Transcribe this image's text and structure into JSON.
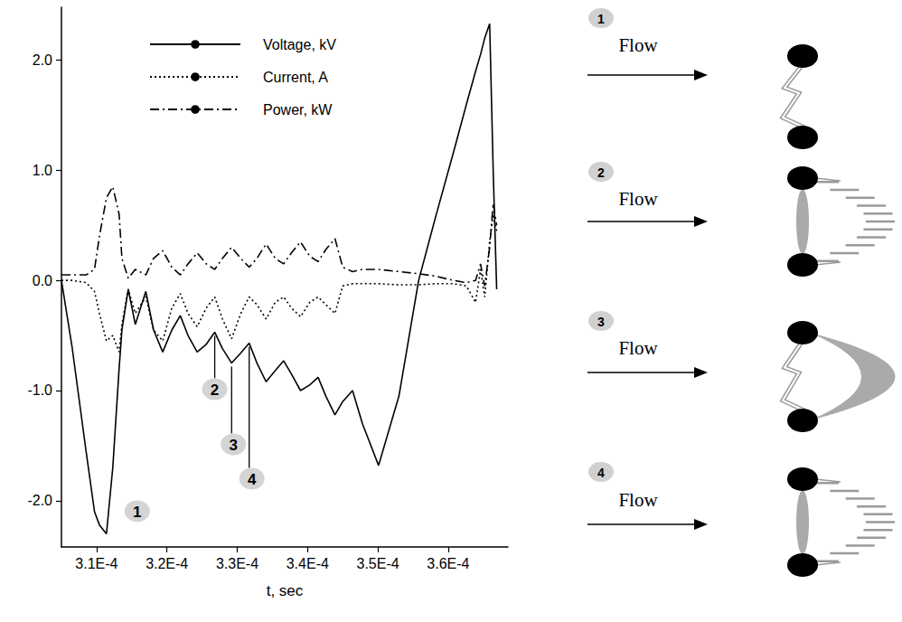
{
  "chart_data": {
    "type": "line",
    "x_label": "t, sec",
    "x": [
      0.000305,
      0.0003065,
      0.0003085,
      0.0003097,
      0.0003104,
      0.0003114,
      0.0003123,
      0.0003132,
      0.0003136,
      0.0003145,
      0.0003155,
      0.000317,
      0.0003181,
      0.0003194,
      0.0003207,
      0.0003219,
      0.000323,
      0.0003243,
      0.0003256,
      0.0003268,
      0.0003279,
      0.0003292,
      0.0003305,
      0.0003317,
      0.0003328,
      0.0003341,
      0.0003354,
      0.0003366,
      0.0003377,
      0.000339,
      0.0003403,
      0.0003415,
      0.0003426,
      0.0003439,
      0.000345,
      0.0003464,
      0.0003478,
      0.0003501,
      0.000353,
      0.0003558,
      0.0003581,
      0.0003607,
      0.0003626,
      0.0003639,
      0.0003646,
      0.0003652,
      0.0003659,
      0.0003664,
      0.0003669
    ],
    "series": [
      {
        "name": "Voltage, kV",
        "color": "#000000",
        "line_style": "solid",
        "values": [
          0,
          -0.6,
          -1.55,
          -2.1,
          -2.22,
          -2.3,
          -1.7,
          -0.8,
          -0.45,
          -0.08,
          -0.4,
          -0.1,
          -0.45,
          -0.65,
          -0.45,
          -0.32,
          -0.5,
          -0.65,
          -0.58,
          -0.47,
          -0.62,
          -0.75,
          -0.66,
          -0.57,
          -0.75,
          -0.92,
          -0.82,
          -0.73,
          -0.85,
          -1.0,
          -0.95,
          -0.88,
          -1.05,
          -1.22,
          -1.1,
          -1.0,
          -1.3,
          -1.68,
          -1.05,
          0.0,
          0.55,
          1.15,
          1.6,
          1.9,
          2.05,
          2.2,
          2.33,
          1.0,
          -0.08
        ]
      },
      {
        "name": "Current, A",
        "color": "#000000",
        "line_style": "dotted",
        "values": [
          0,
          0,
          -0.02,
          -0.1,
          -0.3,
          -0.55,
          -0.5,
          -0.65,
          -0.4,
          -0.08,
          -0.3,
          -0.15,
          -0.45,
          -0.55,
          -0.25,
          -0.12,
          -0.3,
          -0.42,
          -0.25,
          -0.15,
          -0.35,
          -0.53,
          -0.3,
          -0.15,
          -0.22,
          -0.35,
          -0.2,
          -0.15,
          -0.25,
          -0.33,
          -0.2,
          -0.15,
          -0.22,
          -0.3,
          -0.05,
          -0.03,
          -0.03,
          -0.03,
          -0.04,
          -0.04,
          -0.03,
          -0.03,
          -0.05,
          -0.2,
          0.1,
          -0.15,
          0.35,
          0.6,
          0.45
        ]
      },
      {
        "name": "Power, kW",
        "color": "#000000",
        "line_style": "dashdot",
        "values": [
          0.05,
          0.05,
          0.05,
          0.1,
          0.4,
          0.75,
          0.85,
          0.6,
          0.2,
          0.02,
          0.1,
          0.05,
          0.2,
          0.27,
          0.12,
          0.05,
          0.15,
          0.25,
          0.15,
          0.1,
          0.2,
          0.3,
          0.2,
          0.12,
          0.2,
          0.33,
          0.2,
          0.15,
          0.25,
          0.35,
          0.22,
          0.17,
          0.28,
          0.38,
          0.12,
          0.08,
          0.1,
          0.1,
          0.08,
          0.06,
          0.04,
          0.0,
          -0.02,
          0.0,
          0.15,
          -0.05,
          0.3,
          0.7,
          0.5
        ]
      }
    ],
    "xlim": [
      0.000305,
      0.0003685
    ],
    "xticks": [
      {
        "value": 0.00031,
        "label": "3.1E-4"
      },
      {
        "value": 0.00032,
        "label": "3.2E-4"
      },
      {
        "value": 0.00033,
        "label": "3.3E-4"
      },
      {
        "value": 0.00034,
        "label": "3.4E-4"
      },
      {
        "value": 0.00035,
        "label": "3.5E-4"
      },
      {
        "value": 0.00036,
        "label": "3.6E-4"
      }
    ],
    "ylim": [
      -2.42,
      2.48
    ],
    "yticks": [
      {
        "value": -2,
        "label": "-2.0"
      },
      {
        "value": -1,
        "label": "-1.0"
      },
      {
        "value": 0,
        "label": "0.0"
      },
      {
        "value": 1,
        "label": "1.0"
      },
      {
        "value": 2,
        "label": "2.0"
      }
    ],
    "grid": false,
    "legend": "top-left",
    "annotations": [
      {
        "text": "1",
        "x": 0.0003114,
        "y": -2.3
      },
      {
        "text": "2",
        "x": 0.0003268,
        "y": -0.47
      },
      {
        "text": "3",
        "x": 0.0003292,
        "y": -0.75
      },
      {
        "text": "4",
        "x": 0.0003317,
        "y": -0.57
      }
    ]
  },
  "diagram": {
    "panels": [
      {
        "label": "1",
        "flow": "Flow"
      },
      {
        "label": "2",
        "flow": "Flow"
      },
      {
        "label": "3",
        "flow": "Flow"
      },
      {
        "label": "4",
        "flow": "Flow"
      }
    ]
  }
}
